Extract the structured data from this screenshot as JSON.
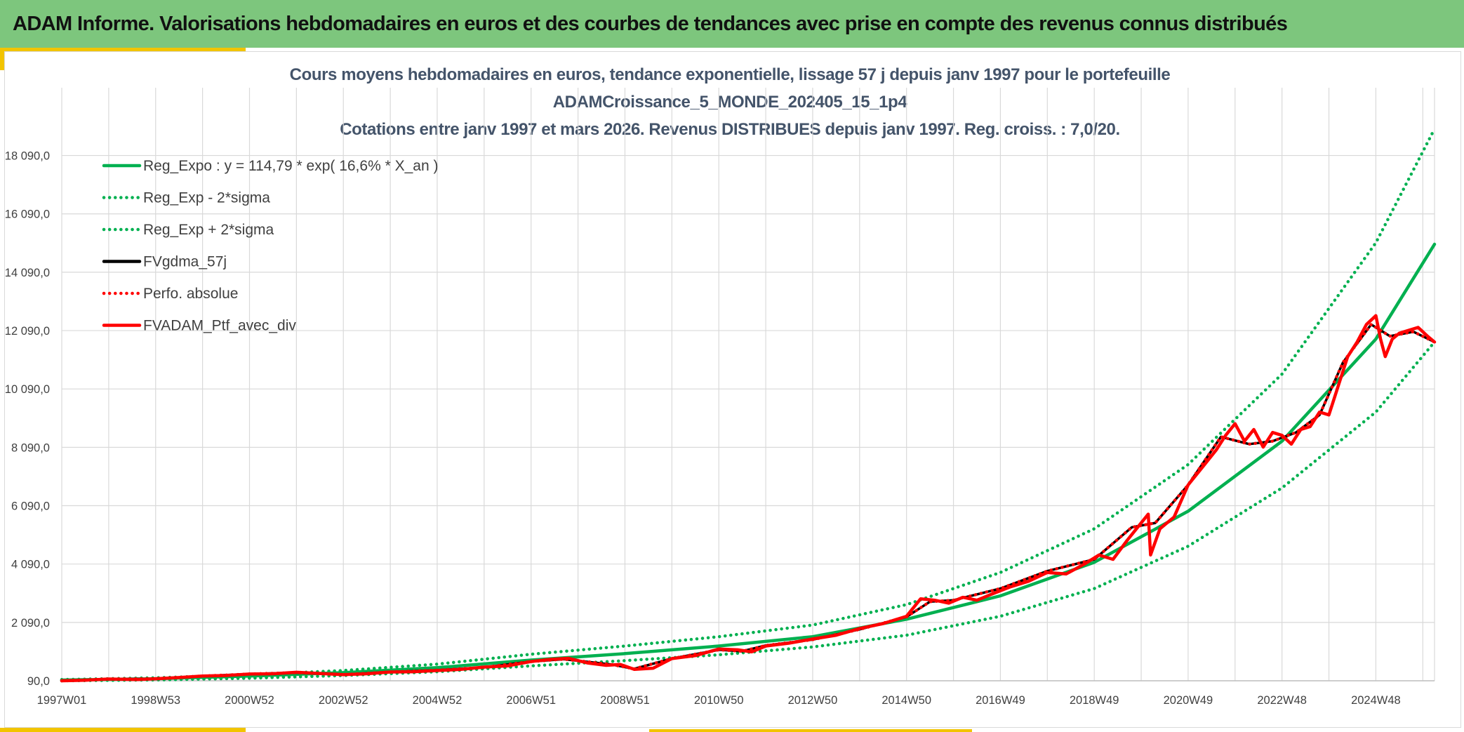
{
  "header": {
    "title": "ADAM Informe. Valorisations hebdomadaires en euros et des courbes de tendances avec prise en compte des revenus connus distribués"
  },
  "colors": {
    "header_bg": "#7dc67d",
    "accent": "#f2c400",
    "reg_expo": "#00b050",
    "fv_gdma": "#000000",
    "portfolio": "#ff0000",
    "title_text": "#44546a"
  },
  "chart_data": {
    "type": "line",
    "title_lines": [
      "Cours moyens hebdomadaires en euros, tendance exponentielle, lissage 57 j depuis janv 1997 pour le portefeuille",
      "ADAMCroissance_5_MONDE_202405_15_1p4",
      "Cotations entre janv 1997 et mars 2026. Revenus DISTRIBUES depuis janv 1997. Reg. croiss. : 7,0/20."
    ],
    "x_range": [
      1997.0,
      2026.25
    ],
    "ylim": [
      90,
      19090
    ],
    "y_ticks": [
      "90,0",
      "2 090,0",
      "4 090,0",
      "6 090,0",
      "8 090,0",
      "10 090,0",
      "12 090,0",
      "14 090,0",
      "16 090,0",
      "18 090,0"
    ],
    "x_ticks": [
      {
        "label": "1997W01",
        "x": 1997.0
      },
      {
        "label": "1998W53",
        "x": 1999.0
      },
      {
        "label": "2000W52",
        "x": 2001.0
      },
      {
        "label": "2002W52",
        "x": 2003.0
      },
      {
        "label": "2004W52",
        "x": 2005.0
      },
      {
        "label": "2006W51",
        "x": 2007.0
      },
      {
        "label": "2008W51",
        "x": 2009.0
      },
      {
        "label": "2010W50",
        "x": 2011.0
      },
      {
        "label": "2012W50",
        "x": 2013.0
      },
      {
        "label": "2014W50",
        "x": 2015.0
      },
      {
        "label": "2016W49",
        "x": 2017.0
      },
      {
        "label": "2018W49",
        "x": 2019.0
      },
      {
        "label": "2020W49",
        "x": 2021.0
      },
      {
        "label": "2022W48",
        "x": 2023.0
      },
      {
        "label": "2024W48",
        "x": 2025.0
      }
    ],
    "grid": true,
    "legend_position": "top-left",
    "legend": [
      {
        "label": "Reg_Expo : y = 114,79 * exp( 16,6% *  X_an )",
        "color": "#00b050",
        "style": "solid"
      },
      {
        "label": "Reg_Exp - 2*sigma",
        "color": "#00b050",
        "style": "dotted"
      },
      {
        "label": "Reg_Exp + 2*sigma",
        "color": "#00b050",
        "style": "dotted"
      },
      {
        "label": "FVgdma_57j",
        "color": "#000000",
        "style": "solid"
      },
      {
        "label": "Perfo. absolue",
        "color": "#ff0000",
        "style": "dotted"
      },
      {
        "label": "FVADAM_Ptf_avec_div",
        "color": "#ff0000",
        "style": "solid"
      }
    ],
    "series": [
      {
        "name": "Reg_Expo : y = 114,79 * exp( 16,6% *  X_an )",
        "color": "#00b050",
        "style": "solid",
        "x": [
          1997,
          1999,
          2001,
          2003,
          2005,
          2007,
          2009,
          2011,
          2013,
          2015,
          2017,
          2019,
          2021,
          2023,
          2025,
          2026.25
        ],
        "y": [
          114,
          160,
          250,
          370,
          540,
          800,
          1020,
          1280,
          1600,
          2200,
          3000,
          4150,
          5900,
          8300,
          11800,
          15050
        ]
      },
      {
        "name": "Reg_Exp - 2*sigma",
        "color": "#00b050",
        "style": "dotted",
        "x": [
          1997,
          1999,
          2001,
          2003,
          2005,
          2007,
          2009,
          2011,
          2013,
          2015,
          2017,
          2019,
          2021,
          2023,
          2025,
          2026.25
        ],
        "y": [
          90,
          120,
          180,
          270,
          400,
          600,
          780,
          980,
          1250,
          1650,
          2300,
          3250,
          4700,
          6700,
          9300,
          11700
        ]
      },
      {
        "name": "Reg_Exp + 2*sigma",
        "color": "#00b050",
        "style": "dotted",
        "x": [
          1997,
          1999,
          2001,
          2003,
          2005,
          2007,
          2009,
          2011,
          2013,
          2015,
          2017,
          2019,
          2021,
          2023,
          2025,
          2026.25
        ],
        "y": [
          130,
          190,
          300,
          440,
          660,
          1000,
          1280,
          1600,
          2000,
          2700,
          3800,
          5300,
          7500,
          10600,
          15100,
          19000
        ]
      },
      {
        "name": "FVgdma_57j",
        "color": "#000000",
        "style": "solid",
        "x": [
          1997,
          1998,
          1999,
          2000,
          2001,
          2002,
          2003,
          2004,
          2005,
          2006,
          2007,
          2007.7,
          2008.7,
          2009.2,
          2010,
          2011,
          2011.5,
          2012,
          2013,
          2014,
          2015,
          2015.5,
          2016,
          2017,
          2018,
          2019,
          2019.8,
          2020.3,
          2021,
          2021.7,
          2022.3,
          2022.8,
          2023.3,
          2023.8,
          2024.3,
          2024.9,
          2025.3,
          2025.8,
          2026.25
        ],
        "y": [
          90,
          150,
          160,
          250,
          320,
          370,
          300,
          390,
          450,
          550,
          750,
          830,
          650,
          500,
          850,
          1150,
          1100,
          1300,
          1500,
          1850,
          2280,
          2800,
          2850,
          3250,
          3850,
          4250,
          5350,
          5500,
          6800,
          8450,
          8200,
          8300,
          8600,
          9200,
          11000,
          12300,
          11900,
          12050,
          11700
        ]
      },
      {
        "name": "Perfo. absolue",
        "color": "#ff0000",
        "style": "dotted",
        "x": [
          1997,
          1998,
          1999,
          2000,
          2001,
          2002,
          2003,
          2004,
          2005,
          2006,
          2007,
          2007.7,
          2008.7,
          2009.2,
          2010,
          2011,
          2011.5,
          2012,
          2013,
          2014,
          2015,
          2015.5,
          2016,
          2017,
          2018,
          2019,
          2019.8,
          2020.3,
          2021,
          2021.7,
          2022.3,
          2022.8,
          2023.3,
          2023.8,
          2024.3,
          2024.9,
          2025.3,
          2025.8,
          2026.25
        ],
        "y": [
          90,
          150,
          160,
          250,
          320,
          370,
          300,
          390,
          450,
          550,
          750,
          830,
          650,
          500,
          850,
          1150,
          1100,
          1300,
          1500,
          1850,
          2280,
          2800,
          2850,
          3250,
          3850,
          4250,
          5350,
          5500,
          6800,
          8450,
          8200,
          8300,
          8600,
          9200,
          11000,
          12300,
          11900,
          12050,
          11700
        ]
      },
      {
        "name": "FVADAM_Ptf_avec_div",
        "color": "#ff0000",
        "style": "solid",
        "x": [
          1997,
          1997.5,
          1998,
          1998.6,
          1999,
          1999.5,
          2000,
          2000.5,
          2001,
          2001.5,
          2002,
          2002.5,
          2003,
          2003.5,
          2004,
          2004.5,
          2005,
          2005.5,
          2006,
          2006.5,
          2007,
          2007.4,
          2007.8,
          2008.2,
          2008.6,
          2008.9,
          2009.2,
          2009.6,
          2010,
          2010.5,
          2011,
          2011.4,
          2011.7,
          2012,
          2012.5,
          2013,
          2013.5,
          2014,
          2014.5,
          2015,
          2015.3,
          2015.6,
          2015.9,
          2016.2,
          2016.5,
          2016.8,
          2017.2,
          2017.6,
          2018,
          2018.4,
          2018.8,
          2019.1,
          2019.4,
          2019.7,
          2019.95,
          2020.15,
          2020.2,
          2020.4,
          2020.7,
          2021,
          2021.3,
          2021.6,
          2021.8,
          2022.0,
          2022.2,
          2022.4,
          2022.6,
          2022.8,
          2023.0,
          2023.2,
          2023.4,
          2023.6,
          2023.8,
          2024.0,
          2024.2,
          2024.4,
          2024.6,
          2024.8,
          2025.0,
          2025.1,
          2025.2,
          2025.35,
          2025.5,
          2025.7,
          2025.9,
          2026.0,
          2026.1,
          2026.25
        ],
        "y": [
          90,
          110,
          150,
          130,
          160,
          200,
          250,
          270,
          320,
          330,
          380,
          340,
          300,
          330,
          390,
          400,
          440,
          480,
          560,
          600,
          750,
          820,
          860,
          700,
          620,
          650,
          480,
          520,
          850,
          950,
          1180,
          1150,
          1080,
          1280,
          1380,
          1520,
          1650,
          1880,
          2050,
          2300,
          2900,
          2850,
          2750,
          2950,
          2850,
          3050,
          3300,
          3500,
          3800,
          3750,
          4100,
          4400,
          4250,
          4900,
          5400,
          5800,
          4400,
          5300,
          5700,
          6800,
          7400,
          8000,
          8500,
          8900,
          8300,
          8700,
          8100,
          8600,
          8500,
          8200,
          8700,
          8800,
          9300,
          9200,
          10200,
          11200,
          11700,
          12300,
          12600,
          11800,
          11200,
          11800,
          12000,
          12100,
          12200,
          12050,
          11900,
          11700
        ]
      }
    ]
  }
}
